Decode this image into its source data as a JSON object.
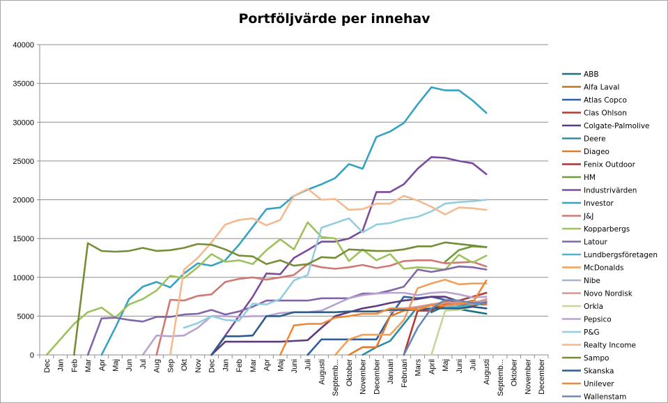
{
  "chart_data": {
    "type": "line",
    "title": "Portföljvärde per innehav",
    "xlabel": "",
    "ylabel": "",
    "ylim": [
      0,
      40000
    ],
    "yticks": [
      0,
      5000,
      10000,
      15000,
      20000,
      25000,
      30000,
      35000,
      40000
    ],
    "grid": "horizontal",
    "legend": "right",
    "categories": [
      "Dec",
      "Jan",
      "Feb",
      "Mar",
      "Apr",
      "Maj",
      "Jun",
      "Jul",
      "Aug",
      "Sep",
      "Okt",
      "Nov",
      "Dec",
      "Jan",
      "Feb",
      "Mar",
      "Apr",
      "Maj",
      "Juni",
      "Juli",
      "Augusti",
      "September",
      "Oktober",
      "November",
      "December",
      "Januari",
      "Februari",
      "Mars",
      "April",
      "Maj",
      "Juni",
      "Juli",
      "Augusti",
      "September",
      "Oktober",
      "November",
      "December"
    ],
    "category_labels": [
      "Dec",
      "Jan",
      "Feb",
      "Mar",
      "Apr",
      "Maj",
      "Jun",
      "Jul",
      "Aug",
      "Sep",
      "Okt",
      "Nov",
      "Dec",
      "Jan",
      "Feb",
      "Mar",
      "Apr",
      "Maj",
      "Juni",
      "Juli",
      "Augusti",
      "Septemb...",
      "Oktober",
      "November",
      "December",
      "Januari",
      "Februari",
      "Mars",
      "April",
      "Maj",
      "Juni",
      "Juli",
      "Augusti",
      "Septemb...",
      "Oktober",
      "November",
      "December"
    ],
    "series": [
      {
        "name": "ABB",
        "color": "#1f6f7f",
        "values": [
          null,
          null,
          null,
          null,
          null,
          null,
          null,
          null,
          null,
          null,
          null,
          null,
          null,
          null,
          null,
          null,
          null,
          null,
          null,
          null,
          null,
          null,
          null,
          null,
          null,
          null,
          null,
          null,
          5500,
          6300,
          5900,
          5600,
          5300,
          null,
          null,
          null,
          null
        ]
      },
      {
        "name": "Alfa Laval",
        "color": "#c5711f",
        "values": [
          null,
          null,
          null,
          null,
          null,
          null,
          null,
          null,
          null,
          null,
          null,
          null,
          null,
          null,
          null,
          null,
          null,
          null,
          null,
          null,
          null,
          null,
          null,
          null,
          null,
          null,
          null,
          null,
          6000,
          6300,
          6100,
          6500,
          7100,
          null,
          null,
          null,
          null
        ]
      },
      {
        "name": "Atlas Copco",
        "color": "#2a5fa5",
        "values": [
          null,
          null,
          null,
          null,
          null,
          null,
          null,
          null,
          null,
          null,
          null,
          null,
          null,
          null,
          null,
          null,
          null,
          null,
          null,
          0,
          2000,
          2000,
          2000,
          2000,
          2000,
          5000,
          7500,
          7300,
          7500,
          7100,
          6800,
          6600,
          6700,
          null,
          null,
          null,
          null
        ]
      },
      {
        "name": "Clas Ohlson",
        "color": "#b03a36",
        "values": [
          null,
          null,
          null,
          null,
          null,
          null,
          null,
          null,
          null,
          null,
          null,
          null,
          null,
          null,
          null,
          null,
          null,
          null,
          null,
          null,
          null,
          null,
          null,
          null,
          null,
          null,
          0,
          5700,
          5700,
          7000,
          7000,
          7500,
          8000,
          null,
          null,
          null,
          null
        ]
      },
      {
        "name": "Colgate-Palmolive",
        "color": "#5e3a7f",
        "values": [
          null,
          null,
          null,
          null,
          null,
          null,
          null,
          null,
          null,
          null,
          null,
          null,
          0,
          1700,
          1700,
          1700,
          1700,
          1700,
          1800,
          1900,
          3500,
          5000,
          5500,
          6000,
          6300,
          6700,
          7000,
          7200,
          7500,
          7500,
          6900,
          6600,
          6500,
          null,
          null,
          null,
          null
        ]
      },
      {
        "name": "Deere",
        "color": "#2c8ca8",
        "values": [
          null,
          null,
          null,
          null,
          null,
          null,
          null,
          null,
          null,
          null,
          null,
          null,
          null,
          null,
          null,
          null,
          null,
          null,
          null,
          null,
          null,
          null,
          null,
          0,
          1000,
          1800,
          4000,
          6200,
          6500,
          6600,
          6400,
          6600,
          7000,
          null,
          null,
          null,
          null
        ]
      },
      {
        "name": "Diageo",
        "color": "#e07b27",
        "values": [
          null,
          null,
          null,
          null,
          null,
          null,
          null,
          null,
          null,
          null,
          null,
          null,
          null,
          null,
          null,
          null,
          null,
          null,
          null,
          null,
          null,
          null,
          0,
          1000,
          1000,
          5000,
          5700,
          6100,
          6500,
          6800,
          6600,
          7000,
          6500,
          null,
          null,
          null,
          null
        ]
      },
      {
        "name": "Fenix Outdoor",
        "color": "#a83232",
        "values": [
          null,
          null,
          null,
          null,
          null,
          null,
          null,
          null,
          null,
          null,
          null,
          null,
          null,
          null,
          null,
          null,
          null,
          null,
          null,
          null,
          null,
          null,
          null,
          null,
          null,
          null,
          null,
          null,
          6000,
          6600,
          6500,
          6300,
          6800,
          null,
          null,
          null,
          null
        ]
      },
      {
        "name": "HM",
        "color": "#6e9a3a",
        "values": [
          null,
          null,
          null,
          null,
          null,
          null,
          null,
          null,
          null,
          null,
          null,
          null,
          null,
          null,
          null,
          null,
          null,
          null,
          null,
          null,
          null,
          null,
          null,
          null,
          null,
          null,
          null,
          null,
          null,
          12000,
          13500,
          14000,
          13900,
          null,
          null,
          null,
          null
        ]
      },
      {
        "name": "Industrivärden",
        "color": "#7a4a9c",
        "values": [
          null,
          null,
          null,
          null,
          null,
          null,
          null,
          null,
          null,
          null,
          null,
          null,
          0,
          2500,
          5000,
          7500,
          10500,
          10400,
          12500,
          13500,
          14600,
          14600,
          15000,
          16000,
          21000,
          21000,
          22000,
          24000,
          25500,
          25400,
          25000,
          24700,
          23300,
          null,
          null,
          null,
          null
        ]
      },
      {
        "name": "Investor",
        "color": "#35a2c2",
        "values": [
          null,
          null,
          null,
          null,
          0,
          3500,
          7200,
          8800,
          9400,
          8700,
          10500,
          11800,
          11500,
          12200,
          14200,
          16500,
          18800,
          19000,
          20500,
          21300,
          22000,
          22800,
          24600,
          24000,
          28100,
          28800,
          29900,
          32300,
          34500,
          34100,
          34100,
          32800,
          31200,
          null,
          null,
          null,
          null
        ]
      },
      {
        "name": "J&J",
        "color": "#d07874",
        "values": [
          null,
          null,
          null,
          null,
          null,
          null,
          null,
          null,
          0,
          7100,
          7000,
          7600,
          7800,
          9400,
          9800,
          10000,
          9700,
          10000,
          10300,
          11700,
          11300,
          11100,
          11300,
          11600,
          11200,
          11500,
          12100,
          12200,
          12200,
          11800,
          11900,
          12000,
          11400,
          null,
          null,
          null,
          null
        ]
      },
      {
        "name": "Kopparbergs",
        "color": "#9ec15e",
        "values": [
          0,
          2000,
          4000,
          5500,
          6100,
          4800,
          6500,
          7200,
          8300,
          10200,
          9900,
          11300,
          13000,
          12000,
          12200,
          11700,
          13500,
          14900,
          13600,
          17100,
          15200,
          15000,
          12100,
          13600,
          12200,
          13000,
          11100,
          11300,
          11200,
          11000,
          12900,
          11900,
          12800,
          null,
          null,
          null,
          null
        ]
      },
      {
        "name": "Latour",
        "color": "#8265a9",
        "values": [
          null,
          null,
          null,
          0,
          4700,
          4800,
          4500,
          4300,
          4900,
          4900,
          5200,
          5300,
          5800,
          5200,
          5600,
          6200,
          7000,
          7000,
          7000,
          7000,
          7300,
          7300,
          7300,
          7900,
          7900,
          8300,
          8800,
          11000,
          10700,
          11000,
          11400,
          11300,
          11000,
          null,
          null,
          null,
          null
        ]
      },
      {
        "name": "Lundbergsföretagen",
        "color": "#4fb2cf",
        "values": [
          null,
          null,
          null,
          null,
          null,
          null,
          null,
          null,
          null,
          null,
          null,
          null,
          null,
          null,
          null,
          null,
          null,
          null,
          null,
          null,
          null,
          null,
          null,
          null,
          null,
          null,
          null,
          null,
          null,
          6100,
          6200,
          6500,
          6700,
          null,
          null,
          null,
          null
        ]
      },
      {
        "name": "McDonalds",
        "color": "#f0a05a",
        "values": [
          null,
          null,
          null,
          null,
          null,
          null,
          null,
          null,
          null,
          null,
          null,
          null,
          null,
          null,
          null,
          null,
          null,
          null,
          null,
          null,
          null,
          0,
          2000,
          2600,
          2600,
          2600,
          4500,
          8600,
          9200,
          9700,
          9100,
          9200,
          9200,
          null,
          null,
          null,
          null
        ]
      },
      {
        "name": "Nibe",
        "color": "#a3b3cc",
        "values": [
          null,
          null,
          null,
          null,
          null,
          null,
          null,
          null,
          null,
          null,
          null,
          null,
          null,
          null,
          null,
          null,
          null,
          null,
          null,
          null,
          null,
          null,
          null,
          null,
          null,
          null,
          null,
          null,
          null,
          6300,
          6500,
          6800,
          7000,
          null,
          null,
          null,
          null
        ]
      },
      {
        "name": "Novo Nordisk",
        "color": "#d9958f",
        "values": [
          null,
          null,
          null,
          null,
          null,
          null,
          null,
          null,
          null,
          null,
          null,
          null,
          null,
          null,
          null,
          null,
          null,
          null,
          null,
          null,
          null,
          null,
          null,
          null,
          null,
          5500,
          6000,
          6200,
          6500,
          6700,
          6800,
          6600,
          7200,
          null,
          null,
          null,
          null
        ]
      },
      {
        "name": "Orkla",
        "color": "#c4d89a",
        "values": [
          null,
          null,
          null,
          null,
          null,
          null,
          null,
          null,
          null,
          null,
          null,
          null,
          null,
          null,
          null,
          null,
          null,
          null,
          null,
          null,
          null,
          null,
          null,
          null,
          null,
          null,
          null,
          null,
          0,
          5700,
          5800,
          6200,
          6000,
          null,
          null,
          null,
          null
        ]
      },
      {
        "name": "Pepsico",
        "color": "#b8a3cf",
        "values": [
          null,
          null,
          null,
          null,
          null,
          null,
          null,
          0,
          2500,
          2400,
          2500,
          3500,
          5000,
          5000,
          4900,
          5000,
          5000,
          5400,
          5500,
          5500,
          5700,
          6500,
          7300,
          7700,
          7900,
          8000,
          8000,
          7700,
          8000,
          8100,
          7800,
          7400,
          7500,
          null,
          null,
          null,
          null
        ]
      },
      {
        "name": "P&G",
        "color": "#93cddf",
        "values": [
          null,
          null,
          null,
          null,
          null,
          null,
          null,
          null,
          null,
          null,
          3500,
          4100,
          5000,
          4500,
          4400,
          6600,
          6500,
          7200,
          9600,
          10300,
          16400,
          17000,
          17600,
          15800,
          16800,
          17000,
          17500,
          17800,
          18500,
          19500,
          19700,
          19800,
          20000,
          null,
          null,
          null,
          null
        ]
      },
      {
        "name": "Realty Income",
        "color": "#f5b98e",
        "values": [
          null,
          null,
          null,
          null,
          null,
          null,
          null,
          null,
          null,
          0,
          11000,
          12500,
          14500,
          16800,
          17400,
          17600,
          16700,
          17400,
          20500,
          21400,
          20000,
          20100,
          18700,
          18800,
          19500,
          19500,
          20500,
          19900,
          19100,
          18100,
          19000,
          18900,
          18700,
          null,
          null,
          null,
          null
        ]
      },
      {
        "name": "Sampo",
        "color": "#758d36",
        "values": [
          null,
          null,
          0,
          14400,
          13400,
          13300,
          13400,
          13800,
          13400,
          13500,
          13800,
          14300,
          14200,
          13600,
          12800,
          12700,
          11700,
          12200,
          11500,
          11700,
          12600,
          12500,
          13600,
          13500,
          13400,
          13400,
          13600,
          14000,
          14000,
          14500,
          14300,
          14100,
          13900,
          null,
          null,
          null,
          null
        ]
      },
      {
        "name": "Skanska",
        "color": "#2e5c8a",
        "values": [
          null,
          null,
          null,
          null,
          null,
          null,
          null,
          null,
          null,
          null,
          null,
          null,
          0,
          2400,
          2400,
          2500,
          5000,
          5000,
          5500,
          5500,
          5500,
          5500,
          5600,
          5600,
          5600,
          5800,
          5800,
          5800,
          6000,
          6000,
          6000,
          6200,
          6000,
          null,
          null,
          null,
          null
        ]
      },
      {
        "name": "Unilever",
        "color": "#ee8a35",
        "values": [
          null,
          null,
          null,
          null,
          null,
          null,
          null,
          null,
          null,
          null,
          null,
          null,
          null,
          null,
          null,
          null,
          null,
          0,
          3800,
          4000,
          4000,
          4800,
          5000,
          5300,
          5300,
          6000,
          6000,
          5800,
          6400,
          6400,
          6600,
          6700,
          9600,
          null,
          null,
          null,
          null
        ]
      },
      {
        "name": "Wallenstam",
        "color": "#6688bb",
        "values": [
          null,
          null,
          null,
          null,
          null,
          null,
          null,
          null,
          null,
          null,
          null,
          null,
          null,
          null,
          null,
          null,
          null,
          null,
          null,
          null,
          null,
          null,
          null,
          null,
          null,
          null,
          0,
          3500,
          6000,
          7100,
          7000,
          6700,
          6700,
          null,
          null,
          null,
          null
        ]
      }
    ]
  }
}
